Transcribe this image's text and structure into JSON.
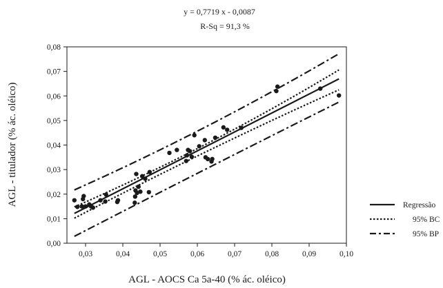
{
  "chart_data": {
    "type": "scatter",
    "equation": "y = 0,7719 x - 0,0087",
    "r_squared": "R-Sq = 91,3 %",
    "xlabel": "AGL - AOCS Ca 5a-40 (% ác. oléico)",
    "ylabel": "AGL - titulador (% ác. oléico)",
    "xlim": [
      0.025,
      0.1
    ],
    "ylim": [
      0.0,
      0.08
    ],
    "x_ticks": [
      0.03,
      0.04,
      0.05,
      0.06,
      0.07,
      0.08,
      0.09,
      0.1
    ],
    "x_tick_labels": [
      "0,03",
      "0,04",
      "0,05",
      "0,06",
      "0,07",
      "0,08",
      "0,09",
      "0,10"
    ],
    "y_ticks": [
      0.0,
      0.01,
      0.02,
      0.03,
      0.04,
      0.05,
      0.06,
      0.07,
      0.08
    ],
    "y_tick_labels": [
      "0,00",
      "0,01",
      "0,02",
      "0,03",
      "0,04",
      "0,05",
      "0,06",
      "0,07",
      "0,08"
    ],
    "grid": false,
    "legend_position": "right",
    "legend": [
      {
        "label": "Regressão",
        "style": "solid"
      },
      {
        "label": "95% BC",
        "style": "dotted"
      },
      {
        "label": "95% BP",
        "style": "dashdot"
      }
    ],
    "points": [
      {
        "x": 0.027,
        "y": 0.0175
      },
      {
        "x": 0.0278,
        "y": 0.0148
      },
      {
        "x": 0.029,
        "y": 0.015
      },
      {
        "x": 0.0293,
        "y": 0.018
      },
      {
        "x": 0.0295,
        "y": 0.0192
      },
      {
        "x": 0.03,
        "y": 0.015
      },
      {
        "x": 0.031,
        "y": 0.0158
      },
      {
        "x": 0.0315,
        "y": 0.015
      },
      {
        "x": 0.032,
        "y": 0.0145
      },
      {
        "x": 0.034,
        "y": 0.0175
      },
      {
        "x": 0.0353,
        "y": 0.017
      },
      {
        "x": 0.0355,
        "y": 0.0198
      },
      {
        "x": 0.0385,
        "y": 0.0168
      },
      {
        "x": 0.0387,
        "y": 0.0175
      },
      {
        "x": 0.0432,
        "y": 0.0165
      },
      {
        "x": 0.0433,
        "y": 0.019
      },
      {
        "x": 0.0434,
        "y": 0.0215
      },
      {
        "x": 0.0436,
        "y": 0.0282
      },
      {
        "x": 0.0438,
        "y": 0.0205
      },
      {
        "x": 0.0442,
        "y": 0.023
      },
      {
        "x": 0.0447,
        "y": 0.021
      },
      {
        "x": 0.0452,
        "y": 0.0273
      },
      {
        "x": 0.046,
        "y": 0.0263
      },
      {
        "x": 0.047,
        "y": 0.0208
      },
      {
        "x": 0.0472,
        "y": 0.029
      },
      {
        "x": 0.0525,
        "y": 0.0368
      },
      {
        "x": 0.0545,
        "y": 0.038
      },
      {
        "x": 0.057,
        "y": 0.0335
      },
      {
        "x": 0.0572,
        "y": 0.0358
      },
      {
        "x": 0.0575,
        "y": 0.038
      },
      {
        "x": 0.058,
        "y": 0.0375
      },
      {
        "x": 0.0585,
        "y": 0.0352
      },
      {
        "x": 0.0592,
        "y": 0.044
      },
      {
        "x": 0.0605,
        "y": 0.0395
      },
      {
        "x": 0.062,
        "y": 0.042
      },
      {
        "x": 0.0622,
        "y": 0.035
      },
      {
        "x": 0.0628,
        "y": 0.0343
      },
      {
        "x": 0.0638,
        "y": 0.0333
      },
      {
        "x": 0.064,
        "y": 0.0343
      },
      {
        "x": 0.0648,
        "y": 0.043
      },
      {
        "x": 0.067,
        "y": 0.0472
      },
      {
        "x": 0.068,
        "y": 0.0462
      },
      {
        "x": 0.0718,
        "y": 0.047
      },
      {
        "x": 0.0812,
        "y": 0.062
      },
      {
        "x": 0.0815,
        "y": 0.0638
      },
      {
        "x": 0.093,
        "y": 0.063
      },
      {
        "x": 0.098,
        "y": 0.0602
      }
    ],
    "lines": {
      "regression": {
        "slope": 0.7719,
        "intercept": -0.0087,
        "x_range": [
          0.027,
          0.098
        ]
      },
      "ci_95_upper": [
        [
          0.027,
          0.0148
        ],
        [
          0.062,
          0.0401
        ],
        [
          0.098,
          0.0706
        ]
      ],
      "ci_95_lower": [
        [
          0.027,
          0.0102
        ],
        [
          0.062,
          0.037
        ],
        [
          0.098,
          0.0625
        ]
      ],
      "pi_95_upper": [
        [
          0.027,
          0.0217
        ],
        [
          0.062,
          0.0472
        ],
        [
          0.098,
          0.0772
        ]
      ],
      "pi_95_lower": [
        [
          0.027,
          0.0028
        ],
        [
          0.062,
          0.03
        ],
        [
          0.098,
          0.0575
        ]
      ]
    }
  }
}
